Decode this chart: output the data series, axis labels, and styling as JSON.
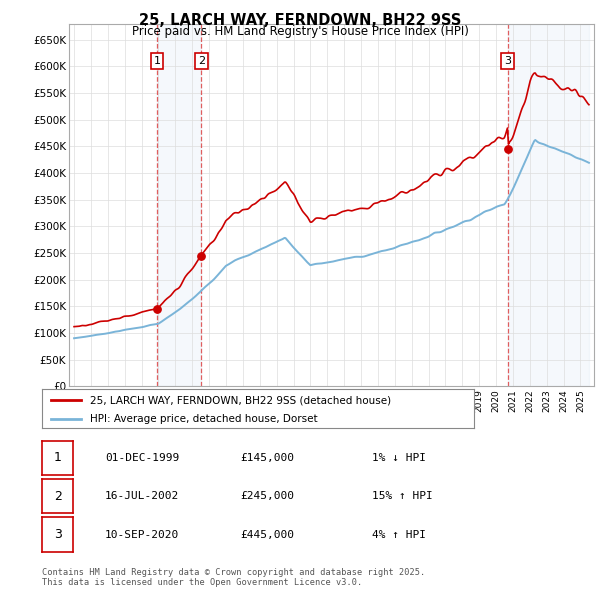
{
  "title": "25, LARCH WAY, FERNDOWN, BH22 9SS",
  "subtitle": "Price paid vs. HM Land Registry's House Price Index (HPI)",
  "legend_label_red": "25, LARCH WAY, FERNDOWN, BH22 9SS (detached house)",
  "legend_label_blue": "HPI: Average price, detached house, Dorset",
  "footer": "Contains HM Land Registry data © Crown copyright and database right 2025.\nThis data is licensed under the Open Government Licence v3.0.",
  "transactions": [
    {
      "num": 1,
      "date": "01-DEC-1999",
      "price": 145000,
      "hpi_pct": "1% ↓ HPI",
      "x_year": 1999.92
    },
    {
      "num": 2,
      "date": "16-JUL-2002",
      "price": 245000,
      "hpi_pct": "15% ↑ HPI",
      "x_year": 2002.54
    },
    {
      "num": 3,
      "date": "10-SEP-2020",
      "price": 445000,
      "hpi_pct": "4% ↑ HPI",
      "x_year": 2020.69
    }
  ],
  "ylim": [
    0,
    680000
  ],
  "yticks": [
    0,
    50000,
    100000,
    150000,
    200000,
    250000,
    300000,
    350000,
    400000,
    450000,
    500000,
    550000,
    600000,
    650000
  ],
  "xlim_start": 1994.7,
  "xlim_end": 2025.8,
  "red_color": "#cc0000",
  "blue_color": "#7aaed6",
  "vline_color": "#dd4444",
  "shade_color": "#ddeeff"
}
